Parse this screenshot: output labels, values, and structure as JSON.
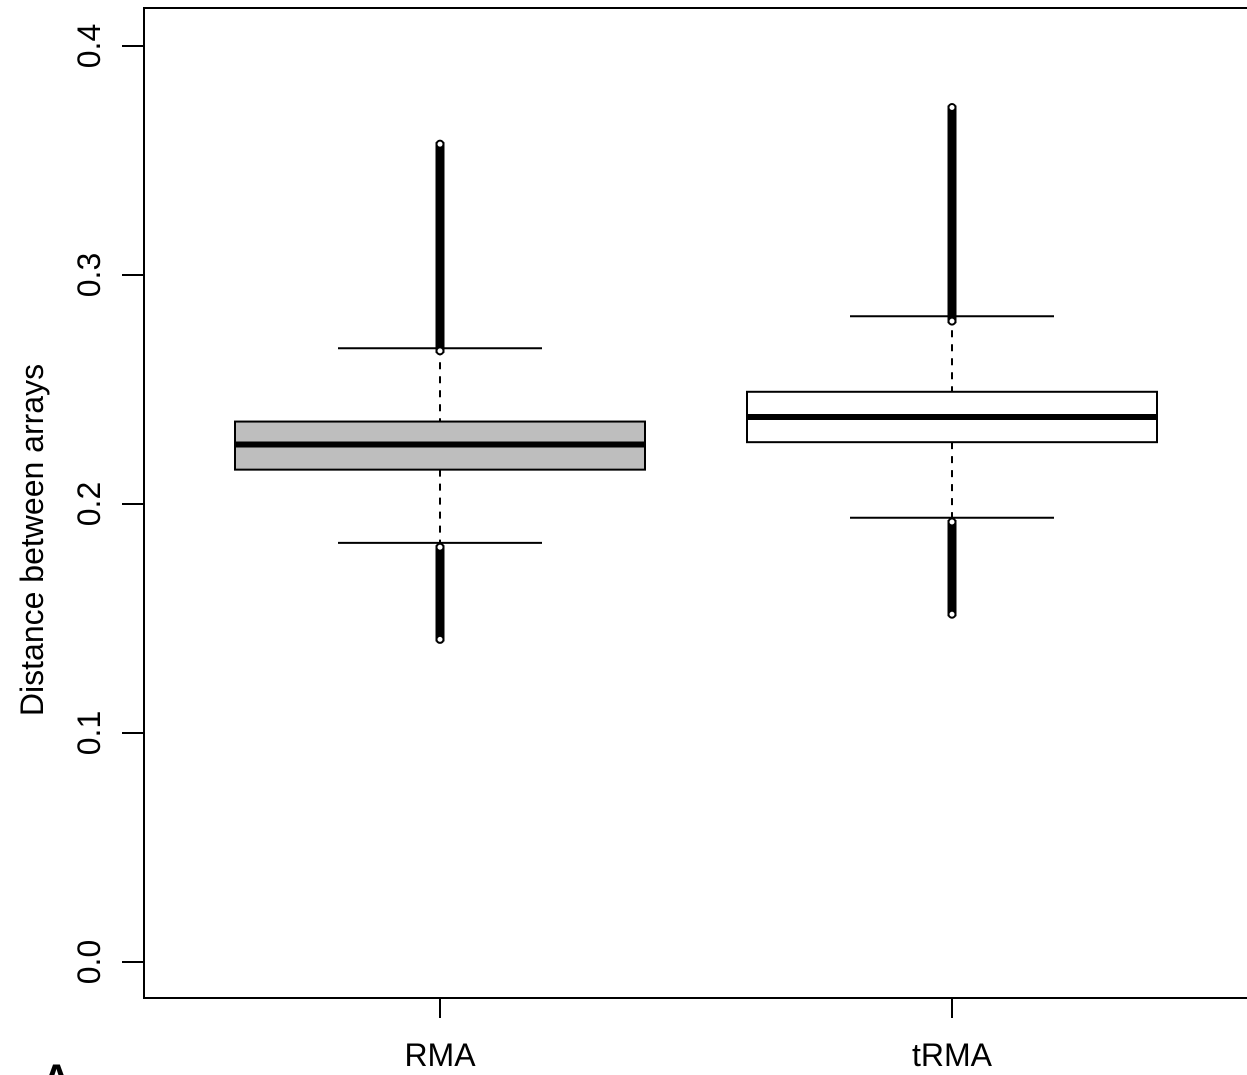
{
  "chart_data": {
    "type": "boxplot",
    "title": "",
    "xlabel": "",
    "ylabel": "Distance between arrays",
    "ylim": [
      0.0,
      0.4
    ],
    "yticks": [
      0.0,
      0.1,
      0.2,
      0.3,
      0.4
    ],
    "ytick_labels": [
      "0.0",
      "0.1",
      "0.2",
      "0.3",
      "0.4"
    ],
    "grid": false,
    "panel_label": "A",
    "series": [
      {
        "category": "RMA",
        "color": "#bebebe",
        "whisker_low": 0.183,
        "q1": 0.215,
        "median": 0.226,
        "q3": 0.236,
        "whisker_high": 0.268,
        "outliers_low_range": [
          0.14,
          0.182
        ],
        "outliers_high_range": [
          0.266,
          0.358
        ]
      },
      {
        "category": "tRMA",
        "color": "#ffffff",
        "whisker_low": 0.194,
        "q1": 0.227,
        "median": 0.238,
        "q3": 0.249,
        "whisker_high": 0.282,
        "outliers_low_range": [
          0.151,
          0.193
        ],
        "outliers_high_range": [
          0.279,
          0.374
        ]
      }
    ]
  }
}
